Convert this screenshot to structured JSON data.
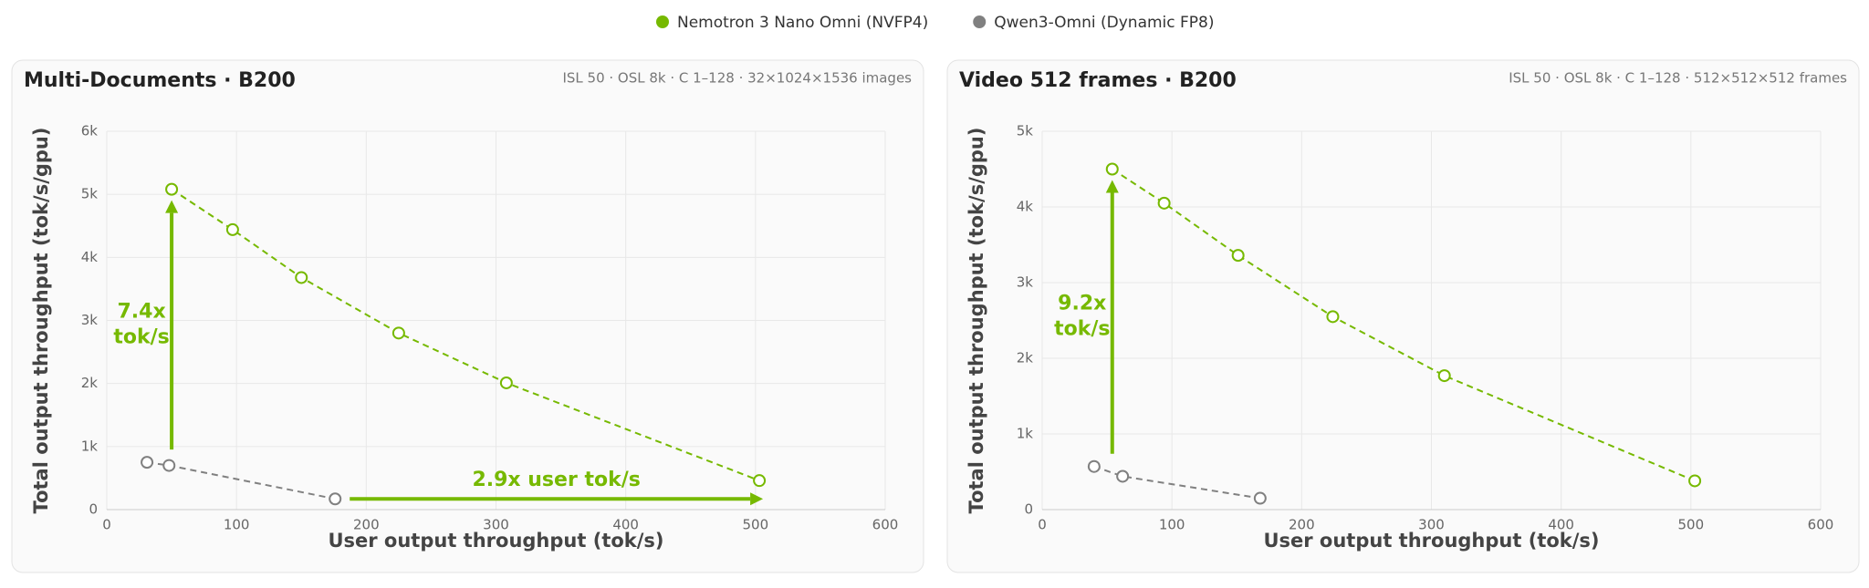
{
  "chart_data": [
    {
      "type": "line",
      "title": "Multi-Documents · B200",
      "subtitle": "ISL 50 · OSL 8k · C 1–128 · 32×1024×1536 images",
      "x_label": "User output throughput (tok/s)",
      "y_label": "Total output throughput (tok/s/gpu)",
      "xlim": [
        0,
        600
      ],
      "xticks": [
        0,
        100,
        200,
        300,
        400,
        500,
        600
      ],
      "ylim": [
        0,
        6000
      ],
      "yticks": [
        0,
        {
          "value": 1000,
          "label": "1k"
        },
        {
          "value": 2000,
          "label": "2k"
        },
        {
          "value": 3000,
          "label": "3k"
        },
        {
          "value": 4000,
          "label": "4k"
        },
        {
          "value": 5000,
          "label": "5k"
        },
        {
          "value": 6000,
          "label": "6k"
        }
      ],
      "grid": true,
      "legend": "top",
      "series": [
        {
          "name": "Nemotron 3 Nano Omni (NVFP4)",
          "color": "#76b900",
          "x": [
            50,
            97,
            150,
            225,
            308,
            503
          ],
          "values": [
            5080,
            4440,
            3680,
            2800,
            2010,
            460
          ]
        },
        {
          "name": "Qwen3-Omni (Dynamic FP8)",
          "color": "#808080",
          "x": [
            31,
            48,
            176
          ],
          "values": [
            750,
            700,
            170
          ]
        }
      ],
      "annotations": [
        {
          "direction": "vertical",
          "text": [
            "7.4x",
            "tok/s"
          ]
        },
        {
          "direction": "horizontal",
          "text": [
            "2.9x user tok/s"
          ]
        }
      ]
    },
    {
      "type": "line",
      "title": "Video 512 frames · B200",
      "subtitle": "ISL 50 · OSL 8k · C 1–128 · 512×512×512 frames",
      "x_label": "User output throughput (tok/s)",
      "y_label": "Total output throughput (tok/s/gpu)",
      "xlim": [
        0,
        600
      ],
      "xticks": [
        0,
        100,
        200,
        300,
        400,
        500,
        600
      ],
      "ylim": [
        0,
        5000
      ],
      "yticks": [
        0,
        {
          "value": 1000,
          "label": "1k"
        },
        {
          "value": 2000,
          "label": "2k"
        },
        {
          "value": 3000,
          "label": "3k"
        },
        {
          "value": 4000,
          "label": "4k"
        },
        {
          "value": 5000,
          "label": "5k"
        }
      ],
      "grid": true,
      "legend": "top",
      "series": [
        {
          "name": "Nemotron 3 Nano Omni (NVFP4)",
          "color": "#76b900",
          "x": [
            54,
            94,
            151,
            224,
            310,
            503
          ],
          "values": [
            4500,
            4050,
            3360,
            2550,
            1770,
            380
          ]
        },
        {
          "name": "Qwen3-Omni (Dynamic FP8)",
          "color": "#808080",
          "x": [
            40,
            62,
            168
          ],
          "values": [
            570,
            440,
            150
          ]
        }
      ],
      "annotations": [
        {
          "direction": "vertical",
          "text": [
            "9.2x",
            "tok/s"
          ]
        }
      ]
    }
  ]
}
